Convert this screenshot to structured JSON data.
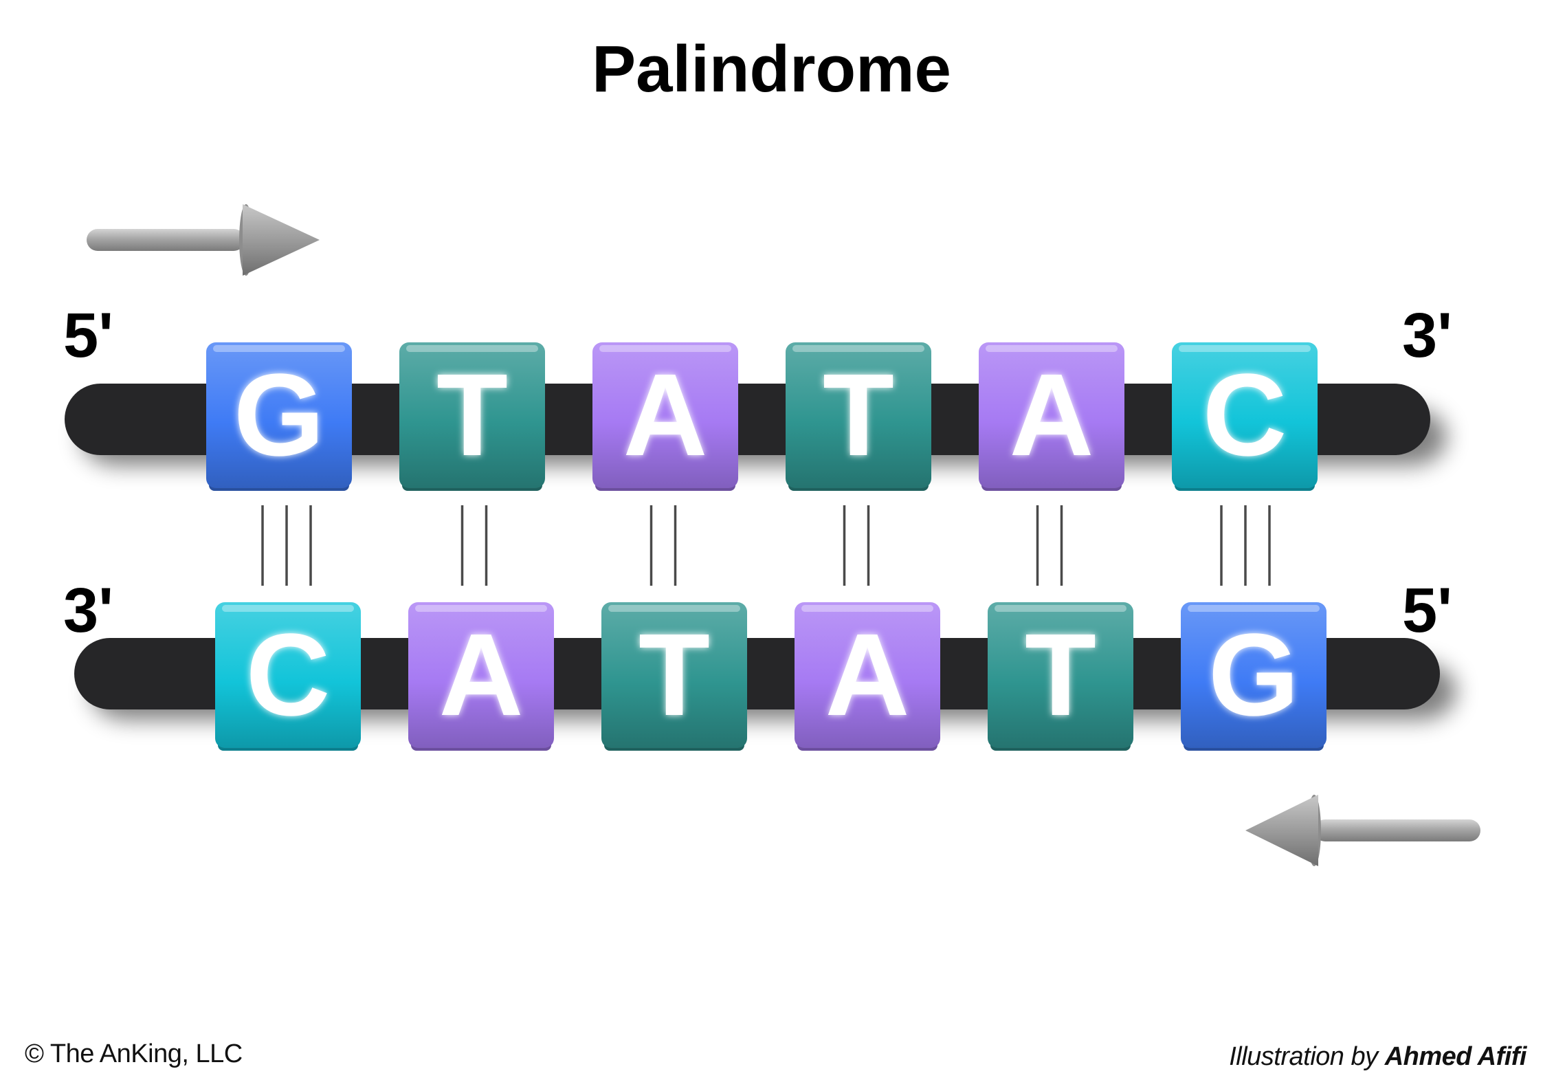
{
  "title": "Palindrome",
  "top_strand": {
    "left_end": "5'",
    "right_end": "3'",
    "bases": [
      "G",
      "T",
      "A",
      "T",
      "A",
      "C"
    ]
  },
  "bottom_strand": {
    "left_end": "3'",
    "right_end": "5'",
    "bases": [
      "C",
      "A",
      "T",
      "A",
      "T",
      "G"
    ]
  },
  "hydrogen_bonds": [
    3,
    2,
    2,
    2,
    2,
    3
  ],
  "colors": {
    "G": "#3f7bf5",
    "C": "#12c4d9",
    "A": "#a67af3",
    "T": "#2f9590",
    "backbone": "#262628",
    "arrow": "#9a9a9a"
  },
  "footer": {
    "copyright": "© The AnKing, LLC",
    "credit_prefix": "Illustration by",
    "credit_name": "Ahmed Afifi"
  }
}
